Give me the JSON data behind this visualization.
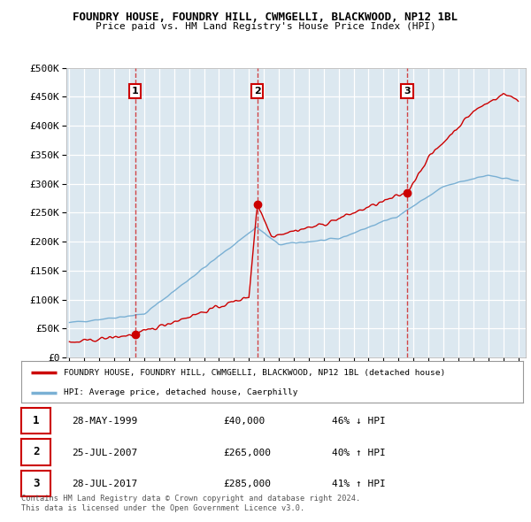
{
  "title": "FOUNDRY HOUSE, FOUNDRY HILL, CWMGELLI, BLACKWOOD, NP12 1BL",
  "subtitle": "Price paid vs. HM Land Registry's House Price Index (HPI)",
  "ylabel_ticks": [
    "£0",
    "£50K",
    "£100K",
    "£150K",
    "£200K",
    "£250K",
    "£300K",
    "£350K",
    "£400K",
    "£450K",
    "£500K"
  ],
  "ytick_values": [
    0,
    50000,
    100000,
    150000,
    200000,
    250000,
    300000,
    350000,
    400000,
    450000,
    500000
  ],
  "xlim": [
    1994.8,
    2025.5
  ],
  "ylim": [
    0,
    500000
  ],
  "sale_points": [
    {
      "date_label": "28-MAY-1999",
      "year": 1999.4,
      "price": 40000,
      "num": 1,
      "pct": "46%",
      "dir": "↓"
    },
    {
      "date_label": "25-JUL-2007",
      "year": 2007.56,
      "price": 265000,
      "num": 2,
      "pct": "40%",
      "dir": "↑"
    },
    {
      "date_label": "28-JUL-2017",
      "year": 2017.57,
      "price": 285000,
      "num": 3,
      "pct": "41%",
      "dir": "↑"
    }
  ],
  "legend_property": "FOUNDRY HOUSE, FOUNDRY HILL, CWMGELLI, BLACKWOOD, NP12 1BL (detached house)",
  "legend_hpi": "HPI: Average price, detached house, Caerphilly",
  "footnote1": "Contains HM Land Registry data © Crown copyright and database right 2024.",
  "footnote2": "This data is licensed under the Open Government Licence v3.0.",
  "property_line_color": "#cc0000",
  "hpi_line_color": "#7ab0d4",
  "grid_color": "#c8d8e8",
  "bg_color": "#dce8f0",
  "plot_bg_color": "#dce8f0",
  "outer_bg_color": "#ffffff",
  "number_box_color": "#cc0000"
}
